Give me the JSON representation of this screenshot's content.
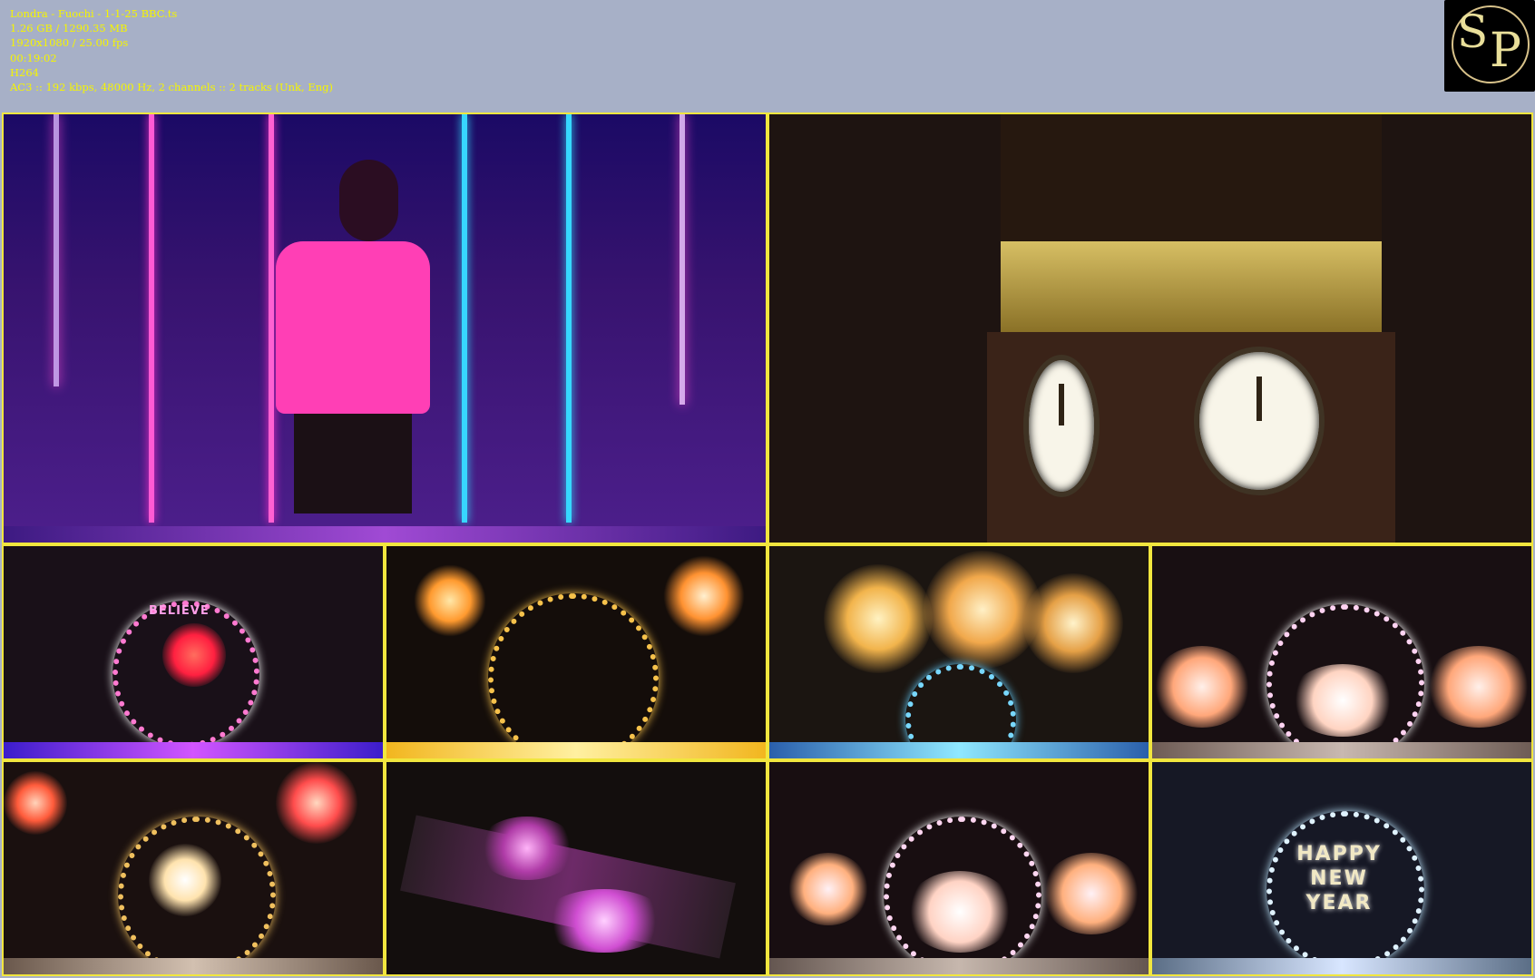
{
  "header": {
    "title": "Londra - Fuochi - 1-1-25 BBC.ts",
    "size": "1.26 GB / 1290.35 MB",
    "resolution": "1920x1080 / 25.00 fps",
    "duration": "00:19:02",
    "codec": "H264",
    "audio": "AC3 :: 192 kbps, 48000 Hz, 2 channels :: 2 tracks (Unk, Eng)"
  },
  "logo": {
    "letters": "SP"
  },
  "frames": [
    {
      "scene": "performer"
    },
    {
      "scene": "big-ben"
    },
    {
      "scene": "fireworks-1",
      "label": "BELIEVE"
    },
    {
      "scene": "fireworks-2"
    },
    {
      "scene": "fireworks-3"
    },
    {
      "scene": "fireworks-4"
    },
    {
      "scene": "fireworks-5"
    },
    {
      "scene": "aerial"
    },
    {
      "scene": "fireworks-6"
    },
    {
      "scene": "happy-new-year",
      "label": "HAPPY NEW YEAR"
    }
  ],
  "colors": {
    "header_bg": "#a7b0c7",
    "text": "#f6f500",
    "tile_border": "#f1e63e"
  }
}
